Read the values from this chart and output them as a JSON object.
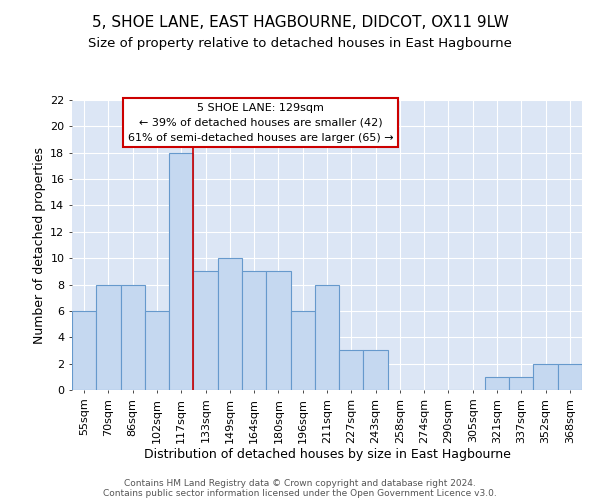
{
  "title1": "5, SHOE LANE, EAST HAGBOURNE, DIDCOT, OX11 9LW",
  "title2": "Size of property relative to detached houses in East Hagbourne",
  "xlabel": "Distribution of detached houses by size in East Hagbourne",
  "ylabel": "Number of detached properties",
  "categories": [
    "55sqm",
    "70sqm",
    "86sqm",
    "102sqm",
    "117sqm",
    "133sqm",
    "149sqm",
    "164sqm",
    "180sqm",
    "196sqm",
    "211sqm",
    "227sqm",
    "243sqm",
    "258sqm",
    "274sqm",
    "290sqm",
    "305sqm",
    "321sqm",
    "337sqm",
    "352sqm",
    "368sqm"
  ],
  "values": [
    6,
    8,
    8,
    6,
    18,
    9,
    10,
    9,
    9,
    6,
    8,
    3,
    3,
    0,
    0,
    0,
    0,
    1,
    1,
    2,
    2
  ],
  "bar_color": "#c5d8f0",
  "bar_edge_color": "#6699cc",
  "vline_index": 5,
  "vline_color": "#cc0000",
  "annotation_text": "5 SHOE LANE: 129sqm\n← 39% of detached houses are smaller (42)\n61% of semi-detached houses are larger (65) →",
  "annotation_box_color": "#ffffff",
  "annotation_box_edge_color": "#cc0000",
  "ylim": [
    0,
    22
  ],
  "yticks": [
    0,
    2,
    4,
    6,
    8,
    10,
    12,
    14,
    16,
    18,
    20,
    22
  ],
  "background_color": "#dce6f5",
  "grid_color": "#ffffff",
  "footer1": "Contains HM Land Registry data © Crown copyright and database right 2024.",
  "footer2": "Contains public sector information licensed under the Open Government Licence v3.0.",
  "title1_fontsize": 11,
  "title2_fontsize": 9.5,
  "xlabel_fontsize": 9,
  "ylabel_fontsize": 9,
  "tick_fontsize": 8
}
